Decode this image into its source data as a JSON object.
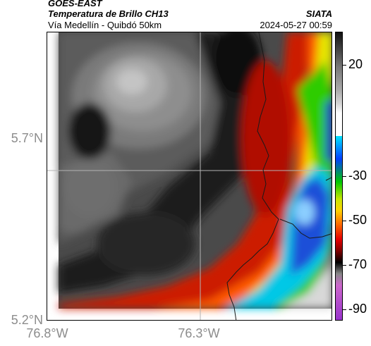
{
  "header": {
    "satellite": "GOES-EAST",
    "product": "Temperatura de Brillo CH13",
    "organization": "SIATA",
    "region": "Vía Medellín - Quibdó 50km",
    "datetime": "2024-05-27 00:59"
  },
  "axes": {
    "lat_labels": [
      "5.7°N",
      "5.2°N"
    ],
    "lon_labels": [
      "76.8°W",
      "76.3°W"
    ]
  },
  "colorbar": {
    "labels": [
      "20",
      "-30",
      "-50",
      "-70",
      "-90"
    ],
    "values": [
      20,
      -30,
      -50,
      -70,
      -90
    ],
    "min": -95,
    "max": 35
  },
  "map": {
    "background_color": "#ffffff",
    "gridline_color": "#b4b4b4",
    "border_color": "#1a1a1a"
  }
}
